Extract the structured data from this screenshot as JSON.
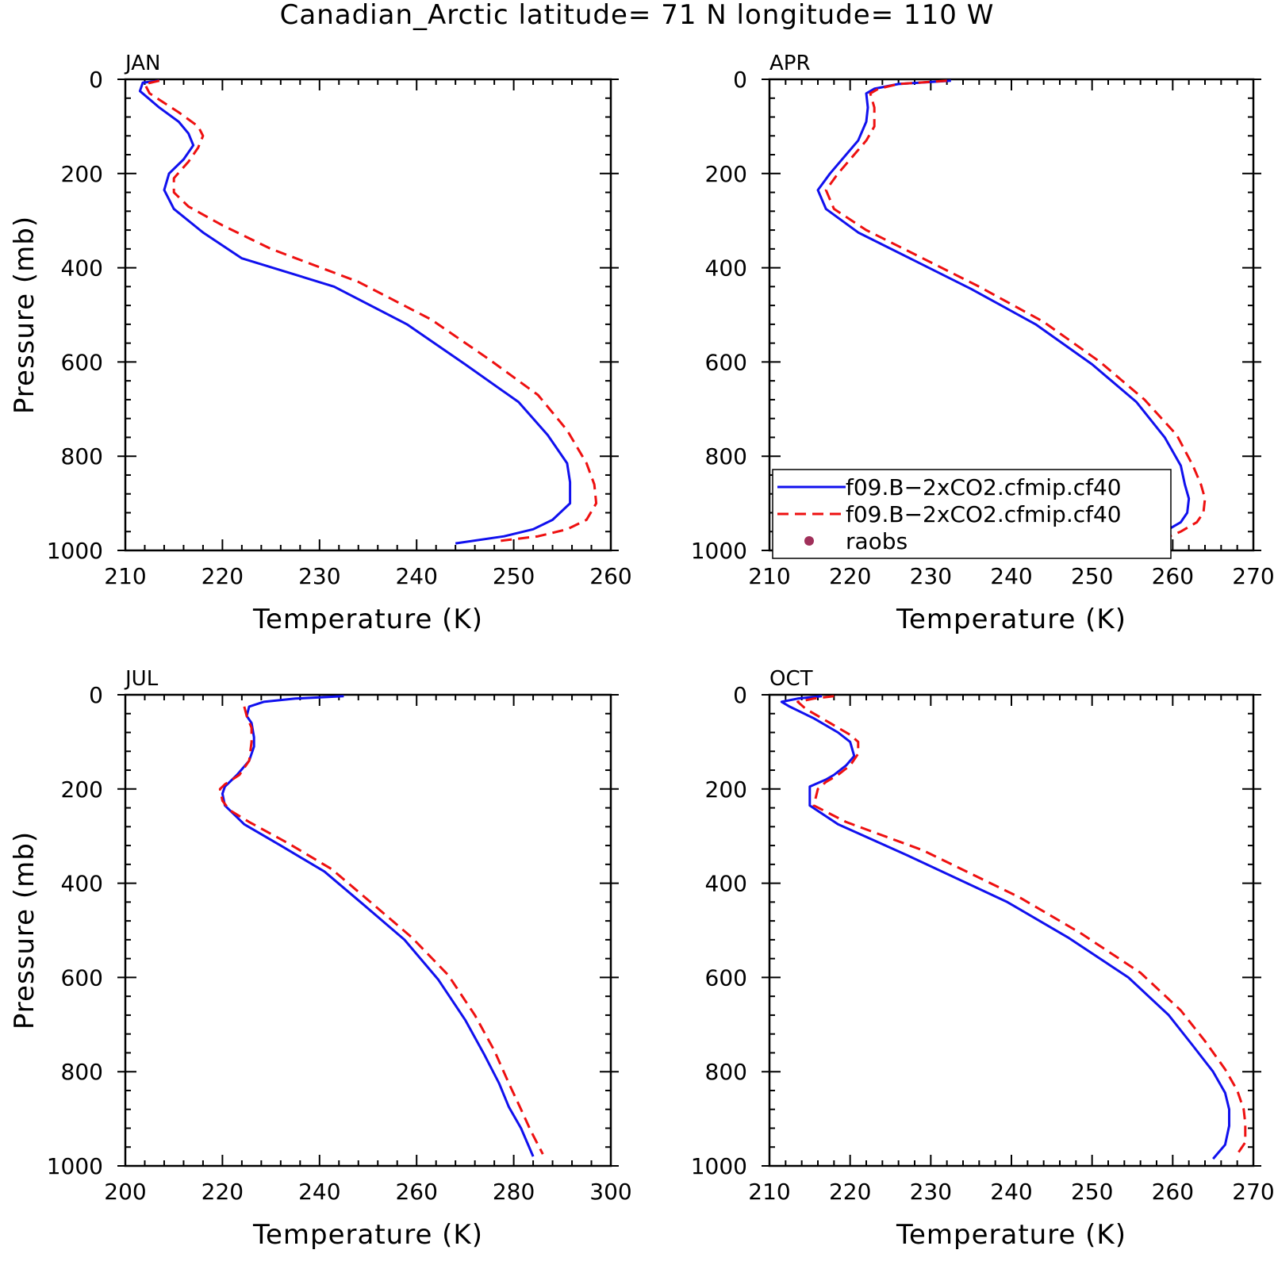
{
  "title": "Canadian_Arctic  latitude= 71 N longitude= 110 W",
  "colors": {
    "model_a": "#1010ee",
    "model_b": "#ee1010",
    "raobs": "#a0305a"
  },
  "legend": {
    "entries": [
      {
        "label": "f09.B−2xCO2.cfmip.cf40",
        "style": "solid"
      },
      {
        "label": "f09.B−2xCO2.cfmip.cf40",
        "style": "dashed"
      },
      {
        "label": "raobs",
        "style": "dot"
      }
    ]
  },
  "chart_data": [
    {
      "type": "line",
      "title": "JAN",
      "xlabel": "Temperature (K)",
      "ylabel": "Pressure (mb)",
      "xlim": [
        210,
        260
      ],
      "ylim": [
        1000,
        0
      ],
      "xticks": [
        210,
        220,
        230,
        240,
        250,
        260
      ],
      "yticks": [
        0,
        200,
        400,
        600,
        800,
        1000
      ],
      "series": [
        {
          "name": "f09.B−2xCO2.cfmip.cf40",
          "style": "solid",
          "x": [
            213.5,
            211.8,
            211.5,
            213.5,
            215.5,
            216.5,
            217.0,
            216.0,
            214.5,
            214.0,
            215.0,
            218.0,
            222.0,
            231.5,
            239.0,
            245.0,
            250.5,
            253.5,
            255.5,
            255.8,
            255.8,
            254.0,
            252.0,
            249.0,
            244.0
          ],
          "y": [
            3,
            7,
            25,
            60,
            90,
            115,
            140,
            170,
            200,
            235,
            275,
            325,
            380,
            440,
            520,
            605,
            685,
            755,
            815,
            855,
            900,
            935,
            955,
            970,
            985
          ]
        },
        {
          "name": "f09.B−2xCO2.cfmip.cf40",
          "style": "dashed",
          "x": [
            213.5,
            212.0,
            212.5,
            215.5,
            217.5,
            218.0,
            217.5,
            216.5,
            215.0,
            215.0,
            216.5,
            220.0,
            225.0,
            234.0,
            241.5,
            247.5,
            252.5,
            255.5,
            257.5,
            258.3,
            258.5,
            257.5,
            255.5,
            252.5,
            248.5
          ],
          "y": [
            3,
            10,
            30,
            70,
            100,
            120,
            145,
            175,
            210,
            240,
            270,
            310,
            360,
            430,
            510,
            595,
            670,
            745,
            815,
            860,
            900,
            935,
            955,
            970,
            980
          ]
        }
      ]
    },
    {
      "type": "line",
      "title": "APR",
      "xlabel": "Temperature (K)",
      "ylabel": "",
      "xlim": [
        210,
        270
      ],
      "ylim": [
        1000,
        0
      ],
      "xticks": [
        210,
        220,
        230,
        240,
        250,
        260,
        270
      ],
      "yticks": [
        0,
        200,
        400,
        600,
        800,
        1000
      ],
      "series": [
        {
          "name": "f09.B−2xCO2.cfmip.cf40",
          "style": "solid",
          "x": [
            232.5,
            226.0,
            223.0,
            222.0,
            222.2,
            222.0,
            221.0,
            219.5,
            217.5,
            216.0,
            217.0,
            221.0,
            228.0,
            235.0,
            243.0,
            250.0,
            255.5,
            259.0,
            261.0,
            261.5,
            262.0,
            261.8,
            261.0,
            259.0,
            255.5
          ],
          "y": [
            3,
            10,
            20,
            30,
            60,
            90,
            130,
            160,
            200,
            235,
            275,
            325,
            385,
            445,
            520,
            605,
            685,
            760,
            820,
            860,
            890,
            920,
            940,
            960,
            990
          ]
        },
        {
          "name": "f09.B−2xCO2.cfmip.cf40",
          "style": "dashed",
          "x": [
            232.0,
            226.0,
            223.5,
            222.5,
            223.0,
            223.0,
            222.0,
            220.5,
            218.5,
            217.0,
            218.0,
            222.0,
            229.0,
            236.0,
            244.0,
            251.0,
            256.5,
            260.5,
            262.5,
            263.5,
            264.0,
            263.8,
            263.0,
            261.0,
            257.5
          ],
          "y": [
            3,
            10,
            20,
            30,
            60,
            100,
            130,
            160,
            200,
            235,
            275,
            320,
            380,
            440,
            515,
            600,
            680,
            755,
            820,
            860,
            890,
            920,
            940,
            960,
            985
          ]
        }
      ]
    },
    {
      "type": "line",
      "title": "JUL",
      "xlabel": "Temperature (K)",
      "ylabel": "Pressure (mb)",
      "xlim": [
        200,
        300
      ],
      "ylim": [
        1000,
        0
      ],
      "xticks": [
        200,
        220,
        240,
        260,
        280,
        300
      ],
      "yticks": [
        0,
        200,
        400,
        600,
        800,
        1000
      ],
      "series": [
        {
          "name": "f09.B−2xCO2.cfmip.cf40",
          "style": "solid",
          "x": [
            245.0,
            235.0,
            228.5,
            225.5,
            225.0,
            226.0,
            226.5,
            226.5,
            225.5,
            223.0,
            220.5,
            220.0,
            220.5,
            224.5,
            232.0,
            241.0,
            249.0,
            257.5,
            264.5,
            270.0,
            274.0,
            277.0,
            279.0,
            281.5,
            284.0
          ],
          "y": [
            3,
            8,
            15,
            25,
            45,
            60,
            90,
            110,
            140,
            170,
            195,
            210,
            235,
            275,
            320,
            375,
            445,
            520,
            605,
            690,
            765,
            825,
            875,
            920,
            980
          ]
        },
        {
          "name": "f09.B−2xCO2.cfmip.cf40",
          "style": "dashed",
          "x": [
            224.5,
            225.0,
            226.0,
            226.0,
            225.5,
            223.5,
            220.5,
            219.5,
            220.0,
            221.5,
            225.5,
            233.5,
            242.5,
            250.5,
            259.0,
            266.5,
            272.0,
            276.0,
            279.0,
            281.5,
            283.5,
            286.0
          ],
          "y": [
            25,
            45,
            70,
            100,
            140,
            170,
            190,
            200,
            225,
            245,
            270,
            315,
            370,
            440,
            515,
            595,
            680,
            755,
            825,
            880,
            925,
            975
          ]
        }
      ]
    },
    {
      "type": "line",
      "title": "OCT",
      "xlabel": "Temperature (K)",
      "ylabel": "",
      "xlim": [
        210,
        270
      ],
      "ylim": [
        1000,
        0
      ],
      "xticks": [
        210,
        220,
        230,
        240,
        250,
        260,
        270
      ],
      "yticks": [
        0,
        200,
        400,
        600,
        800,
        1000
      ],
      "series": [
        {
          "name": "f09.B−2xCO2.cfmip.cf40",
          "style": "solid",
          "x": [
            216.5,
            213.5,
            211.5,
            212.5,
            215.5,
            218.5,
            220.0,
            220.5,
            219.5,
            218.0,
            217.0,
            215.0,
            215.0,
            215.0,
            218.5,
            227.0,
            239.5,
            247.0,
            254.5,
            259.5,
            262.5,
            265.0,
            266.5,
            267.0,
            267.0,
            266.5,
            265.0
          ],
          "y": [
            3,
            8,
            15,
            25,
            50,
            80,
            100,
            130,
            150,
            170,
            180,
            195,
            210,
            235,
            275,
            340,
            440,
            515,
            600,
            680,
            745,
            800,
            845,
            880,
            915,
            955,
            985
          ]
        },
        {
          "name": "f09.B−2xCO2.cfmip.cf40",
          "style": "dashed",
          "x": [
            218.0,
            215.5,
            213.5,
            214.5,
            217.5,
            220.0,
            221.0,
            221.0,
            220.0,
            218.5,
            217.0,
            216.0,
            215.5,
            219.5,
            229.0,
            241.0,
            248.5,
            256.0,
            261.0,
            264.0,
            266.5,
            268.0,
            268.8,
            269.0,
            269.0,
            268.0
          ],
          "y": [
            3,
            8,
            15,
            30,
            60,
            85,
            100,
            125,
            150,
            170,
            185,
            200,
            235,
            270,
            330,
            430,
            505,
            590,
            670,
            735,
            795,
            840,
            880,
            910,
            950,
            975
          ]
        }
      ]
    }
  ]
}
